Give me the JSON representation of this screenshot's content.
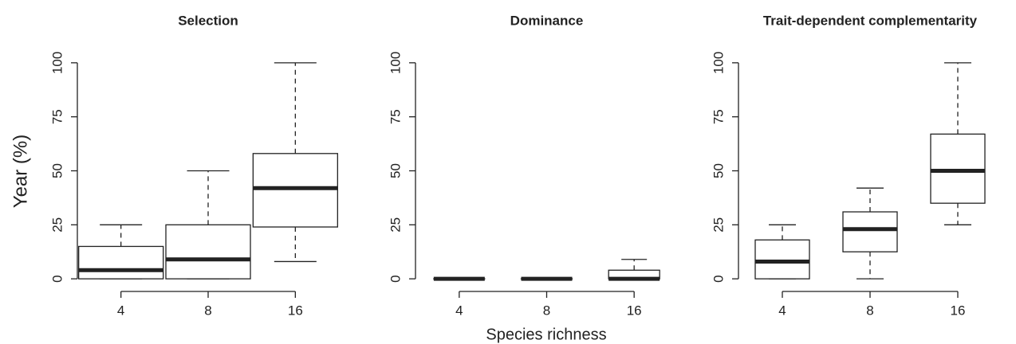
{
  "ylabel": "Year (%)",
  "xlabel": "Species richness",
  "chart_data": [
    {
      "type": "box",
      "title": "Selection",
      "categories": [
        "4",
        "8",
        "16"
      ],
      "boxes": [
        {
          "whislo": 0,
          "q1": 0,
          "med": 4,
          "q3": 15,
          "whishi": 25
        },
        {
          "whislo": 0,
          "q1": 0,
          "med": 9,
          "q3": 25,
          "whishi": 50
        },
        {
          "whislo": 8,
          "q1": 24,
          "med": 42,
          "q3": 58,
          "whishi": 100
        }
      ],
      "ylim": [
        -4,
        104
      ],
      "yticks": [
        0,
        25,
        50,
        75,
        100
      ],
      "color": "#ffffff"
    },
    {
      "type": "box",
      "title": "Dominance",
      "categories": [
        "4",
        "8",
        "16"
      ],
      "boxes": [
        {
          "whislo": 0,
          "q1": 0,
          "med": 0,
          "q3": 0,
          "whishi": 0
        },
        {
          "whislo": 0,
          "q1": 0,
          "med": 0,
          "q3": 0,
          "whishi": 0
        },
        {
          "whislo": 0,
          "q1": 0,
          "med": 0,
          "q3": 4,
          "whishi": 9
        }
      ],
      "ylim": [
        -4,
        104
      ],
      "yticks": [
        0,
        25,
        50,
        75,
        100
      ],
      "color": "#ffffff"
    },
    {
      "type": "box",
      "title": "Trait-dependent complementarity",
      "categories": [
        "4",
        "8",
        "16"
      ],
      "boxes": [
        {
          "whislo": 0,
          "q1": 0,
          "med": 8,
          "q3": 18,
          "whishi": 25
        },
        {
          "whislo": 0,
          "q1": 12.5,
          "med": 23,
          "q3": 31,
          "whishi": 42
        },
        {
          "whislo": 25,
          "q1": 35,
          "med": 50,
          "q3": 67,
          "whishi": 100
        }
      ],
      "ylim": [
        -4,
        104
      ],
      "yticks": [
        0,
        25,
        50,
        75,
        100
      ],
      "color": "#ffffff"
    }
  ]
}
